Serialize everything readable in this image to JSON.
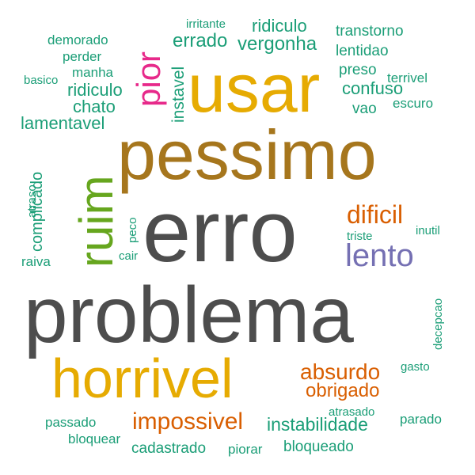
{
  "colors": {
    "dark_gray": "#4d4d4d",
    "brown": "#a6761d",
    "gold": "#e6ab02",
    "green": "#66a61e",
    "magenta": "#e7298a",
    "purple": "#7570b3",
    "orange": "#d95f02",
    "teal": "#1b9e77"
  },
  "words": [
    {
      "text": "problema",
      "color": "#4d4d4d"
    },
    {
      "text": "erro",
      "color": "#4d4d4d"
    },
    {
      "text": "pessimo",
      "color": "#a6761d"
    },
    {
      "text": "usar",
      "color": "#e6ab02"
    },
    {
      "text": "horrivel",
      "color": "#e6ab02"
    },
    {
      "text": "ruim",
      "color": "#66a61e"
    },
    {
      "text": "pior",
      "color": "#e7298a"
    },
    {
      "text": "lento",
      "color": "#7570b3"
    },
    {
      "text": "dificil",
      "color": "#d95f02"
    },
    {
      "text": "absurdo",
      "color": "#d95f02"
    },
    {
      "text": "obrigado",
      "color": "#d95f02"
    },
    {
      "text": "impossivel",
      "color": "#d95f02"
    },
    {
      "text": "instabilidade",
      "color": "#1b9e77"
    },
    {
      "text": "vergonha",
      "color": "#1b9e77"
    },
    {
      "text": "errado",
      "color": "#1b9e77"
    },
    {
      "text": "instavel",
      "color": "#1b9e77"
    },
    {
      "text": "confuso",
      "color": "#1b9e77"
    },
    {
      "text": "lamentavel",
      "color": "#1b9e77"
    },
    {
      "text": "chato",
      "color": "#1b9e77"
    },
    {
      "text": "ridiculo",
      "color": "#1b9e77"
    },
    {
      "text": "ridiculo",
      "color": "#1b9e77"
    },
    {
      "text": "complicado",
      "color": "#1b9e77"
    },
    {
      "text": "cadastrado",
      "color": "#1b9e77"
    },
    {
      "text": "bloqueado",
      "color": "#1b9e77"
    },
    {
      "text": "transtorno",
      "color": "#1b9e77"
    },
    {
      "text": "lentidao",
      "color": "#1b9e77"
    },
    {
      "text": "preso",
      "color": "#1b9e77"
    },
    {
      "text": "vao",
      "color": "#1b9e77"
    },
    {
      "text": "escuro",
      "color": "#1b9e77"
    },
    {
      "text": "terrivel",
      "color": "#1b9e77"
    },
    {
      "text": "irritante",
      "color": "#1b9e77"
    },
    {
      "text": "demorado",
      "color": "#1b9e77"
    },
    {
      "text": "perder",
      "color": "#1b9e77"
    },
    {
      "text": "manha",
      "color": "#1b9e77"
    },
    {
      "text": "basico",
      "color": "#1b9e77"
    },
    {
      "text": "atraso",
      "color": "#1b9e77"
    },
    {
      "text": "raiva",
      "color": "#1b9e77"
    },
    {
      "text": "peco",
      "color": "#1b9e77"
    },
    {
      "text": "cair",
      "color": "#1b9e77"
    },
    {
      "text": "triste",
      "color": "#1b9e77"
    },
    {
      "text": "inutil",
      "color": "#1b9e77"
    },
    {
      "text": "decepcao",
      "color": "#1b9e77"
    },
    {
      "text": "gasto",
      "color": "#1b9e77"
    },
    {
      "text": "atrasado",
      "color": "#1b9e77"
    },
    {
      "text": "parado",
      "color": "#1b9e77"
    },
    {
      "text": "passado",
      "color": "#1b9e77"
    },
    {
      "text": "bloquear",
      "color": "#1b9e77"
    },
    {
      "text": "piorar",
      "color": "#1b9e77"
    }
  ]
}
